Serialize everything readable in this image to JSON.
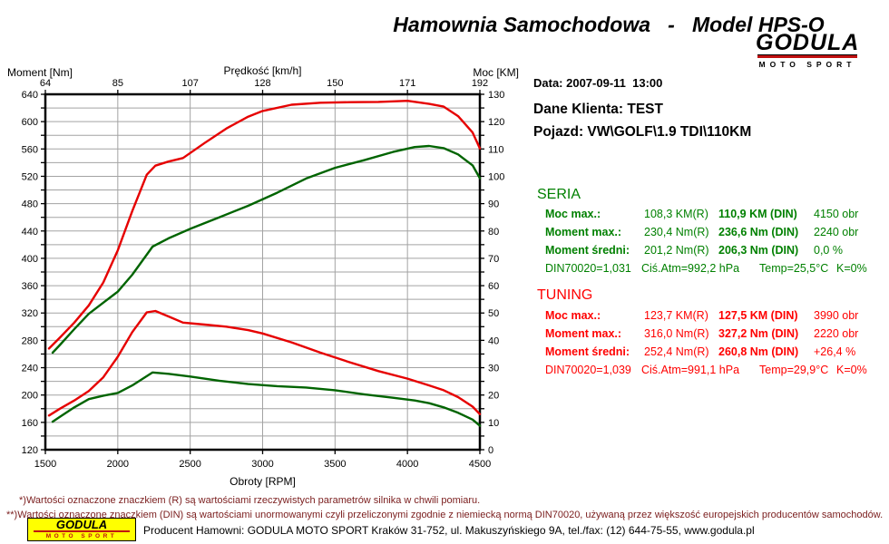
{
  "title": "Hamownia Samochodowa   -   Model HPS-O",
  "logo": {
    "name": "GODULA",
    "sub": "MOTO SPORT"
  },
  "info": {
    "date_line": "Data: 2007-09-11  13:00",
    "client_line": "Dane Klienta: TEST",
    "vehicle_line": "Pojazd: VW\\GOLF\\1.9 TDI\\110KM"
  },
  "seria": {
    "heading": "SERIA",
    "color": "#008000",
    "rows": [
      {
        "label": "Moc max.:",
        "r": "108,3 KM(R)",
        "din": "110,9 KM (DIN)",
        "extra": "4150 obr"
      },
      {
        "label": "Moment max.:",
        "r": "230,4 Nm(R)",
        "din": "236,6 Nm (DIN)",
        "extra": "2240 obr"
      },
      {
        "label": "Moment średni:",
        "r": "201,2 Nm(R)",
        "din": "206,3 Nm (DIN)",
        "extra": "0,0 %"
      }
    ],
    "env": {
      "din": "DIN70020=1,031",
      "atm": "Ciś.Atm=992,2 hPa",
      "temp": "Temp=25,5°C",
      "k": "K=0%"
    }
  },
  "tuning": {
    "heading": "TUNING",
    "color": "#ff0000",
    "rows": [
      {
        "label": "Moc max.:",
        "r": "123,7 KM(R)",
        "din": "127,5 KM (DIN)",
        "extra": "3990 obr"
      },
      {
        "label": "Moment max.:",
        "r": "316,0 Nm(R)",
        "din": "327,2 Nm (DIN)",
        "extra": "2220 obr"
      },
      {
        "label": "Moment średni:",
        "r": "252,4 Nm(R)",
        "din": "260,8 Nm (DIN)",
        "extra": "+26,4 %"
      }
    ],
    "env": {
      "din": "DIN70020=1,039",
      "atm": "Ciś.Atm=991,1 hPa",
      "temp": "Temp=29,9°C",
      "k": "K=0%"
    }
  },
  "footnotes": [
    "*)Wartości oznaczone znaczkiem (R) są wartościami rzeczywistych parametrów silnika w chwili pomiaru.",
    "**)Wartości oznaczone znaczkiem (DIN) są wartościami unormowanymi czyli przeliczonymi zgodnie z niemiecką normą DIN70020, używaną przez większość europejskich producentów samochodów."
  ],
  "producer": "Producent Hamowni: GODULA MOTO SPORT Kraków 31-752, ul. Makuszyńskiego 9A, tel./fax: (12) 644-75-55, www.godula.pl",
  "chart_data": {
    "type": "line",
    "x_axis": {
      "label": "Obroty [RPM]",
      "min": 1500,
      "max": 4500,
      "ticks": [
        1500,
        2000,
        2500,
        3000,
        3500,
        4000,
        4500
      ]
    },
    "top_axis": {
      "label": "Prędkość [km/h]",
      "ticks": [
        64,
        85,
        107,
        128,
        150,
        171,
        192
      ]
    },
    "y_left": {
      "label": "Moment [Nm]",
      "min": 120,
      "max": 640,
      "label_step": 40,
      "grid_step": 20
    },
    "y_right": {
      "label": "Moc [KM]",
      "min": 0,
      "max": 130,
      "label_step": 10,
      "tick_step": 5
    },
    "grid": true,
    "legend": "none",
    "series": [
      {
        "name": "seria-power",
        "axis": "right",
        "color": "#006400",
        "points": [
          [
            1550,
            35.5
          ],
          [
            1600,
            38.3
          ],
          [
            1700,
            44.1
          ],
          [
            1800,
            49.7
          ],
          [
            1900,
            53.8
          ],
          [
            2000,
            57.8
          ],
          [
            2100,
            64
          ],
          [
            2240,
            74.3
          ],
          [
            2350,
            77.3
          ],
          [
            2500,
            80.8
          ],
          [
            2700,
            85
          ],
          [
            2900,
            89.2
          ],
          [
            3100,
            94
          ],
          [
            3300,
            99.2
          ],
          [
            3500,
            103.1
          ],
          [
            3700,
            105.9
          ],
          [
            3900,
            108.9
          ],
          [
            4050,
            110.7
          ],
          [
            4150,
            111.1
          ],
          [
            4250,
            110.3
          ],
          [
            4350,
            108
          ],
          [
            4450,
            104
          ],
          [
            4500,
            99.3
          ]
        ]
      },
      {
        "name": "tuning-power",
        "axis": "right",
        "color": "#e60000",
        "points": [
          [
            1525,
            37
          ],
          [
            1600,
            41
          ],
          [
            1700,
            46.5
          ],
          [
            1800,
            52.8
          ],
          [
            1900,
            61.2
          ],
          [
            2000,
            72.9
          ],
          [
            2100,
            87.3
          ],
          [
            2200,
            100.6
          ],
          [
            2260,
            103.9
          ],
          [
            2350,
            105.4
          ],
          [
            2450,
            106.7
          ],
          [
            2600,
            112.2
          ],
          [
            2750,
            117.5
          ],
          [
            2900,
            121.8
          ],
          [
            3000,
            123.9
          ],
          [
            3200,
            126.2
          ],
          [
            3400,
            126.9
          ],
          [
            3600,
            127.1
          ],
          [
            3800,
            127.2
          ],
          [
            4000,
            127.6
          ],
          [
            4150,
            126.5
          ],
          [
            4250,
            125.5
          ],
          [
            4350,
            122
          ],
          [
            4450,
            116
          ],
          [
            4500,
            110.2
          ]
        ]
      },
      {
        "name": "seria-torque",
        "axis": "left",
        "color": "#006400",
        "points": [
          [
            1550,
            161
          ],
          [
            1600,
            168
          ],
          [
            1700,
            182
          ],
          [
            1800,
            194
          ],
          [
            1900,
            199
          ],
          [
            2000,
            203
          ],
          [
            2100,
            214
          ],
          [
            2240,
            233
          ],
          [
            2350,
            231
          ],
          [
            2500,
            227
          ],
          [
            2700,
            221
          ],
          [
            2900,
            216
          ],
          [
            3100,
            213
          ],
          [
            3300,
            211
          ],
          [
            3500,
            207
          ],
          [
            3700,
            201
          ],
          [
            3900,
            196
          ],
          [
            4050,
            192
          ],
          [
            4150,
            188
          ],
          [
            4250,
            182
          ],
          [
            4350,
            174
          ],
          [
            4450,
            164
          ],
          [
            4500,
            155
          ]
        ]
      },
      {
        "name": "tuning-torque",
        "axis": "left",
        "color": "#e60000",
        "points": [
          [
            1525,
            170
          ],
          [
            1600,
            180
          ],
          [
            1700,
            192
          ],
          [
            1800,
            206
          ],
          [
            1900,
            226
          ],
          [
            2000,
            256
          ],
          [
            2100,
            292
          ],
          [
            2200,
            321
          ],
          [
            2260,
            323
          ],
          [
            2350,
            315
          ],
          [
            2450,
            306
          ],
          [
            2600,
            303
          ],
          [
            2750,
            300
          ],
          [
            2900,
            295
          ],
          [
            3000,
            290
          ],
          [
            3200,
            277
          ],
          [
            3400,
            262
          ],
          [
            3600,
            248
          ],
          [
            3800,
            235
          ],
          [
            4000,
            224
          ],
          [
            4150,
            214
          ],
          [
            4250,
            207
          ],
          [
            4350,
            197
          ],
          [
            4450,
            183
          ],
          [
            4500,
            172
          ]
        ]
      }
    ]
  }
}
